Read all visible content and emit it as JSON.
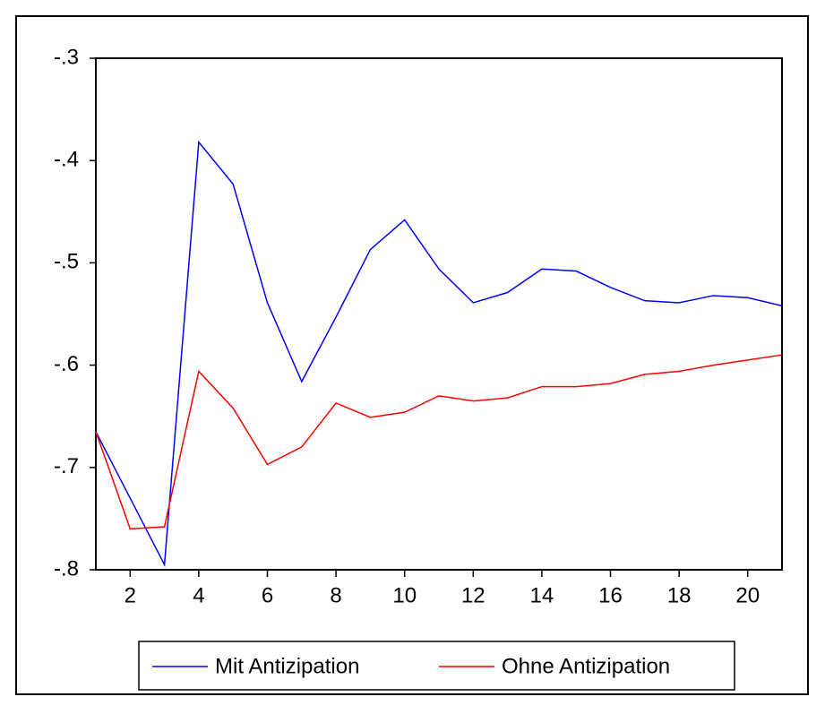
{
  "chart_data": {
    "type": "line",
    "x": [
      1,
      2,
      3,
      4,
      5,
      6,
      7,
      8,
      9,
      10,
      11,
      12,
      13,
      14,
      15,
      16,
      17,
      18,
      19,
      20,
      21
    ],
    "series": [
      {
        "name": "Mit Antizipation",
        "color": "#0000ff",
        "values": [
          -0.665,
          -0.73,
          -0.795,
          -0.382,
          -0.423,
          -0.539,
          -0.616,
          -0.553,
          -0.487,
          -0.458,
          -0.506,
          -0.539,
          -0.529,
          -0.506,
          -0.508,
          -0.524,
          -0.537,
          -0.539,
          -0.532,
          -0.534,
          -0.542
        ]
      },
      {
        "name": "Ohne Antizipation",
        "color": "#ff0000",
        "values": [
          -0.665,
          -0.76,
          -0.758,
          -0.606,
          -0.642,
          -0.697,
          -0.68,
          -0.637,
          -0.651,
          -0.646,
          -0.63,
          -0.635,
          -0.632,
          -0.621,
          -0.621,
          -0.618,
          -0.609,
          -0.606,
          -0.6,
          -0.595,
          -0.59
        ]
      }
    ],
    "xlim": [
      1,
      21
    ],
    "xticks": [
      2,
      4,
      6,
      8,
      10,
      12,
      14,
      16,
      18,
      20
    ],
    "ylim": [
      -0.8,
      -0.3
    ],
    "yticks": [
      {
        "value": -0.8,
        "label": "-.8"
      },
      {
        "value": -0.7,
        "label": "-.7"
      },
      {
        "value": -0.6,
        "label": "-.6"
      },
      {
        "value": -0.5,
        "label": "-.5"
      },
      {
        "value": -0.4,
        "label": "-.4"
      },
      {
        "value": -0.3,
        "label": "-.3"
      }
    ],
    "legend": "bottom"
  }
}
